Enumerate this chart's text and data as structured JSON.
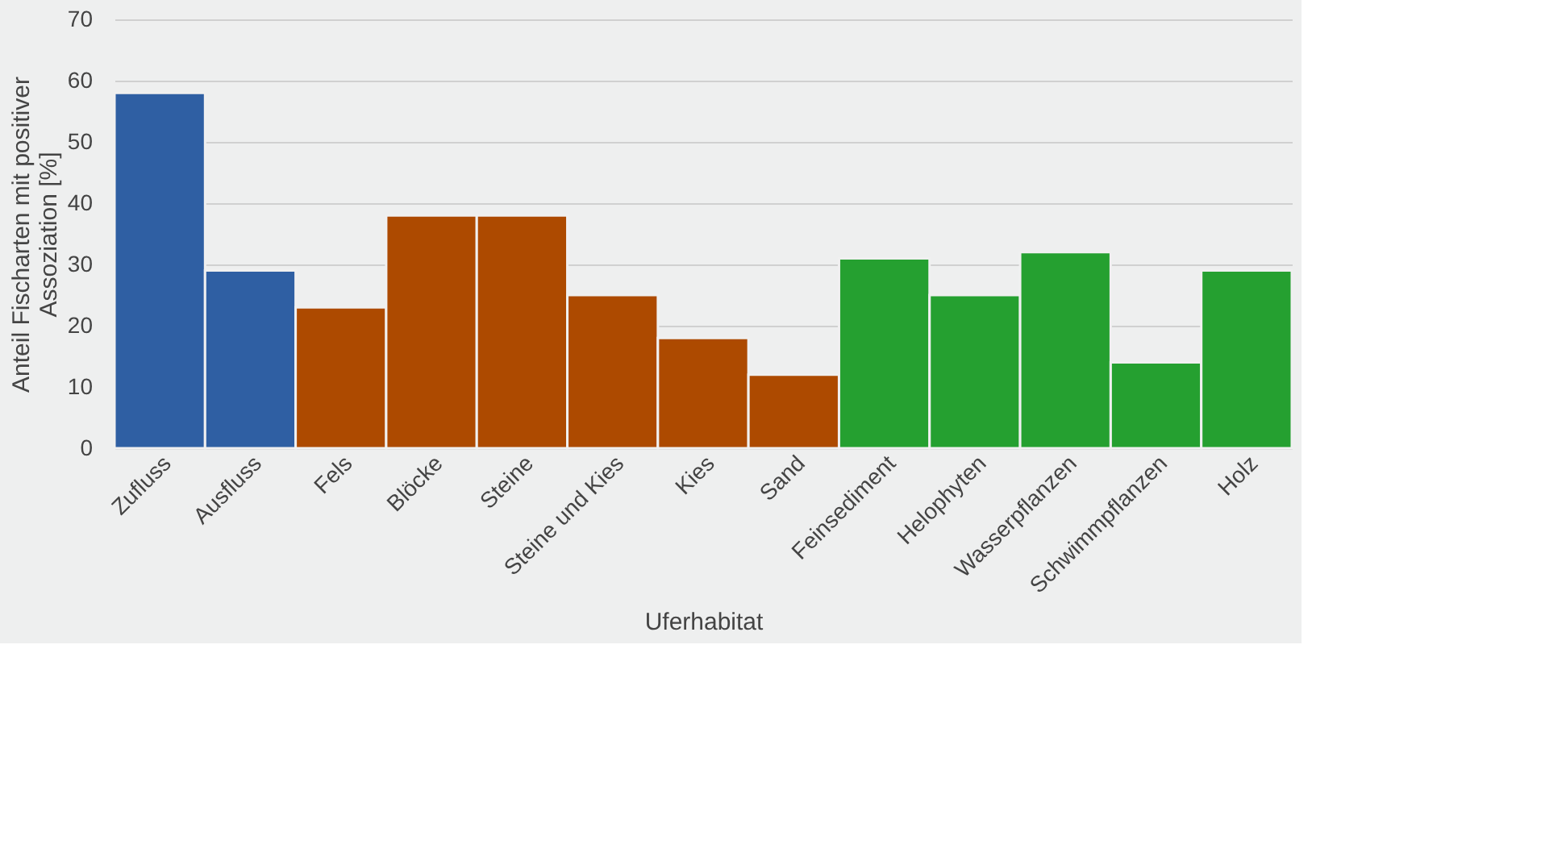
{
  "chart_data": {
    "type": "bar",
    "xlabel": "Uferhabitat",
    "ylabel": "Anteil Fischarten mit positiver Assoziation [%]",
    "categories": [
      "Zufluss",
      "Ausfluss",
      "Fels",
      "Blöcke",
      "Steine",
      "Steine und Kies",
      "Kies",
      "Sand",
      "Feinsediment",
      "Helophyten",
      "Wasserpflanzen",
      "Schwimmpflanzen",
      "Holz"
    ],
    "values": [
      58,
      29,
      23,
      38,
      38,
      25,
      18,
      12,
      31,
      25,
      32,
      14,
      29
    ],
    "colors": [
      "#2f5fa3",
      "#2f5fa3",
      "#ad4a00",
      "#ad4a00",
      "#ad4a00",
      "#ad4a00",
      "#ad4a00",
      "#ad4a00",
      "#25a030",
      "#25a030",
      "#25a030",
      "#25a030",
      "#25a030"
    ],
    "ylim": [
      0,
      70
    ],
    "yticks": [
      0,
      10,
      20,
      30,
      40,
      50,
      60,
      70
    ],
    "grid": "y",
    "legend": false
  }
}
